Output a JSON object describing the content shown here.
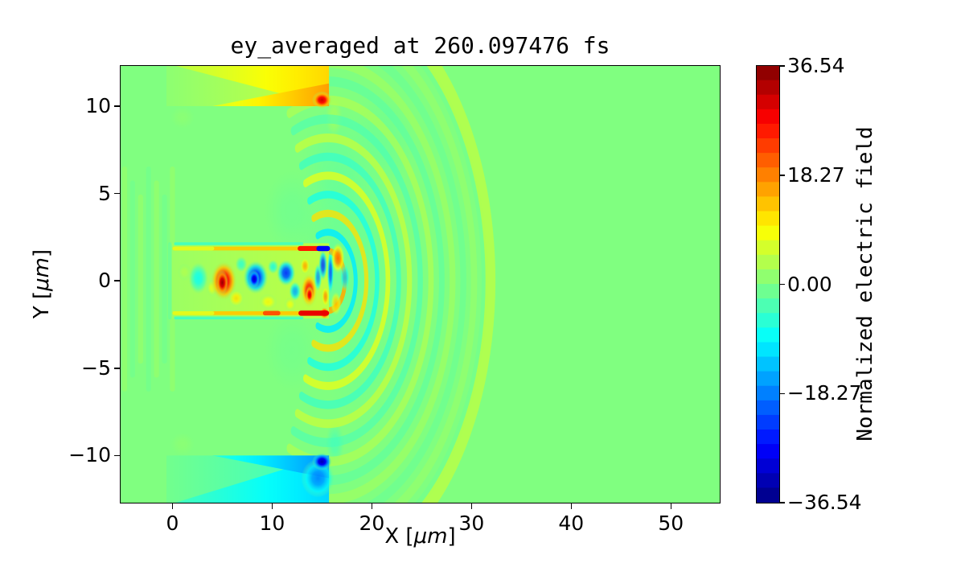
{
  "figure": {
    "title": "ey_averaged at 260.097476 fs",
    "background": "#ffffff"
  },
  "axes": {
    "xlabel_pre": "X [",
    "xlabel_unit": "μm",
    "xlabel_post": "]",
    "ylabel_pre": "Y [",
    "ylabel_unit": "μm",
    "ylabel_post": "]"
  },
  "chart_data": {
    "type": "heatmap",
    "title": "ey_averaged at 260.097476 fs",
    "xlabel": "X [μm]",
    "ylabel": "Y [μm]",
    "xlim": [
      -5.2,
      54.9
    ],
    "ylim": [
      -12.7,
      12.3
    ],
    "x_ticks": [
      0,
      10,
      20,
      30,
      40,
      50
    ],
    "x_tick_labels": [
      "0",
      "10",
      "20",
      "30",
      "40",
      "50"
    ],
    "y_ticks": [
      10,
      5,
      0,
      -5,
      -10
    ],
    "y_tick_labels": [
      "10",
      "5",
      "0",
      "−5",
      "−10"
    ],
    "grid": false,
    "colormap": "jet",
    "colorbar": {
      "label": "Normalized electric field",
      "vmin": -36.54,
      "vmax": 36.54,
      "n_levels": 30,
      "ticks": [
        36.54,
        18.27,
        0,
        -18.27,
        -36.54
      ],
      "tick_labels": [
        "36.54",
        "18.27",
        "0.00",
        "−18.27",
        "−36.54"
      ]
    },
    "field_description": "2D contour map of averaged Ey: laser pulse inside a channel (|y|<2 μm, 0<x<15.6 μm), positive (yellow/red) sheath wedge above y=10 μm and negative (cyan/blue) wedge below y=-10 μm for 0<x<15.6 μm, circular wavefronts radiating from the channel exit at (15.6, 0) out to radius ~16.5 μm; background field 0.",
    "field_features": [
      {
        "type": "stripes",
        "x0": -4.8,
        "x1": 0.0,
        "y0": -6.2,
        "y1": 6.4,
        "n": 7,
        "v": 2.4,
        "v2": -1.6,
        "w": 0.5,
        "a": 0.45
      },
      {
        "type": "blobs",
        "list": [
          [
            17.5,
            1.5,
            5.5,
            6.5,
            -4,
            0.38
          ],
          [
            19,
            -4,
            4.5,
            4.5,
            -2.5,
            0.3
          ],
          [
            16.5,
            6.5,
            4,
            4,
            -3.5,
            0.35
          ],
          [
            21,
            8,
            3.5,
            3,
            -4,
            0.28
          ],
          [
            12,
            4,
            3,
            2.5,
            -3,
            0.3
          ],
          [
            12,
            -4,
            3,
            2.5,
            -2.5,
            0.28
          ],
          [
            1.0,
            9.35,
            1.3,
            0.7,
            1.5,
            0.5
          ],
          [
            1.0,
            -9.35,
            1.3,
            0.7,
            1.5,
            0.5
          ],
          [
            16.2,
            9.4,
            0.9,
            1.2,
            4,
            0.55
          ],
          [
            16.3,
            -9.3,
            1.0,
            1.3,
            -5,
            0.6
          ]
        ]
      },
      {
        "type": "rings",
        "cx": 15.6,
        "cy": 0,
        "r0": 1.7,
        "dr": 1.08,
        "count": 14,
        "v0": 15,
        "vdecay": 0.87,
        "a0": 0.9,
        "adecay": 0.93,
        "w0": 0.38,
        "wgrow": 0.02,
        "ang": 112
      },
      {
        "type": "arc",
        "cx": 15.6,
        "cy": 0,
        "r": 16.3,
        "w": 1.0,
        "v": 4,
        "a": 0.85,
        "ang": 100
      },
      {
        "type": "grect",
        "x0": -0.6,
        "x1": 15.7,
        "y0": 10,
        "y1": 12.35,
        "dir": "x",
        "v0": 1,
        "v1": 5.5,
        "a": 1
      },
      {
        "type": "poly",
        "pts": [
          [
            0,
            12.35
          ],
          [
            15.7,
            12.35
          ],
          [
            15.7,
            10
          ]
        ],
        "x0": 0,
        "x1": 15.7,
        "v0": 4,
        "v1": 12,
        "a": 1
      },
      {
        "type": "poly",
        "pts": [
          [
            4,
            10
          ],
          [
            15.7,
            10
          ],
          [
            15.7,
            11.3
          ]
        ],
        "x0": 4,
        "x1": 15.7,
        "v0": 6,
        "v1": 16,
        "a": 1
      },
      {
        "type": "blob",
        "b": [
          15.0,
          10.35,
          1.0,
          0.5,
          31,
          1
        ]
      },
      {
        "type": "grect",
        "x0": -0.6,
        "x1": 15.7,
        "y0": -12.75,
        "y1": -10,
        "dir": "x",
        "v0": -1,
        "v1": -5.5,
        "a": 1
      },
      {
        "type": "poly",
        "pts": [
          [
            0,
            -12.75
          ],
          [
            15.7,
            -12.75
          ],
          [
            15.7,
            -10
          ]
        ],
        "x0": 0,
        "x1": 15.7,
        "v0": -4,
        "v1": -12,
        "a": 1
      },
      {
        "type": "poly",
        "pts": [
          [
            4,
            -10
          ],
          [
            15.7,
            -10
          ],
          [
            15.7,
            -11.3
          ]
        ],
        "x0": 4,
        "x1": 15.7,
        "v0": -6,
        "v1": -17,
        "a": 1
      },
      {
        "type": "blob",
        "b": [
          14.6,
          -11.3,
          1.7,
          1.1,
          -19,
          0.8
        ]
      },
      {
        "type": "blob",
        "b": [
          15.0,
          -10.35,
          1.0,
          0.5,
          -33,
          1
        ]
      },
      {
        "type": "grect",
        "x0": -0.4,
        "x1": 15.7,
        "y0": -2.15,
        "y1": 2.15,
        "dir": "x",
        "v0": 2,
        "v1": 4.5,
        "a": 1
      },
      {
        "type": "blobs",
        "list": [
          [
            2.6,
            0.15,
            1.0,
            0.9,
            -9,
            0.85
          ],
          [
            1.2,
            0.5,
            0.7,
            0.5,
            4,
            0.6
          ],
          [
            4.0,
            -0.4,
            0.6,
            0.5,
            8,
            0.8
          ],
          [
            5.15,
            0,
            1.35,
            1.15,
            30,
            1
          ],
          [
            5.0,
            -0.1,
            0.6,
            0.7,
            35,
            1
          ],
          [
            6.4,
            -1.0,
            0.8,
            0.5,
            12,
            0.8
          ],
          [
            6.9,
            0.95,
            0.6,
            0.45,
            -8,
            0.7
          ],
          [
            8.35,
            0.2,
            1.25,
            0.95,
            -26,
            1
          ],
          [
            8.2,
            0.1,
            0.55,
            0.5,
            -32,
            1
          ],
          [
            9.6,
            -1.2,
            0.9,
            0.45,
            10,
            0.75
          ],
          [
            10.1,
            0.8,
            0.55,
            0.4,
            -10,
            0.7
          ],
          [
            11.4,
            0.45,
            0.95,
            0.75,
            -24,
            0.95
          ],
          [
            12.3,
            -0.6,
            0.6,
            0.55,
            -16,
            0.85
          ],
          [
            11.8,
            -1.35,
            0.6,
            0.4,
            9,
            0.7
          ],
          [
            13.3,
            0.85,
            0.5,
            0.5,
            16,
            0.85
          ],
          [
            13.7,
            -0.55,
            0.85,
            1.0,
            27,
            0.95
          ],
          [
            13.75,
            -0.8,
            0.4,
            0.5,
            31,
            1
          ],
          [
            14.6,
            0.2,
            0.4,
            0.8,
            -18,
            0.8
          ],
          [
            15.1,
            0.9,
            0.45,
            0.9,
            -24,
            0.85
          ],
          [
            15.35,
            -0.9,
            0.4,
            0.6,
            18,
            0.8
          ],
          [
            15.25,
            -1.85,
            0.5,
            0.35,
            32,
            1
          ]
        ]
      },
      {
        "type": "hsegs",
        "list": [
          [
            1.85,
            0.2,
            15.4,
            0.22,
            13,
            0.95
          ],
          [
            1.85,
            0.2,
            4.0,
            0.22,
            7,
            0.9
          ],
          [
            1.85,
            12.8,
            14.6,
            0.28,
            26,
            1
          ],
          [
            1.85,
            14.7,
            15.55,
            0.3,
            -28,
            1
          ],
          [
            2.12,
            0.3,
            13,
            0.16,
            -8,
            0.6
          ],
          [
            -1.85,
            0.2,
            15.4,
            0.22,
            13,
            0.95
          ],
          [
            -1.85,
            0.2,
            4.0,
            0.22,
            7,
            0.9
          ],
          [
            -1.85,
            9.3,
            10.6,
            0.26,
            22,
            0.95
          ],
          [
            -1.85,
            12.9,
            15.45,
            0.3,
            29,
            1
          ],
          [
            -2.12,
            0.3,
            13,
            0.16,
            -8,
            0.6
          ]
        ]
      },
      {
        "type": "vseg",
        "x": -0.25,
        "y0": -2.1,
        "y1": 2.1,
        "w": 0.35,
        "v": -4,
        "a": 0.5
      },
      {
        "type": "blobs",
        "list": [
          [
            15.85,
            0.5,
            0.35,
            1.3,
            -22,
            0.85
          ],
          [
            16.6,
            1.3,
            0.7,
            0.9,
            20,
            0.9
          ],
          [
            16.4,
            -1.3,
            0.55,
            0.7,
            14,
            0.8
          ],
          [
            17.3,
            0.2,
            0.5,
            0.8,
            -14,
            0.75
          ]
        ]
      }
    ]
  },
  "layout_colors": {
    "axis": "#000000",
    "text": "#000000",
    "background": "#ffffff"
  }
}
